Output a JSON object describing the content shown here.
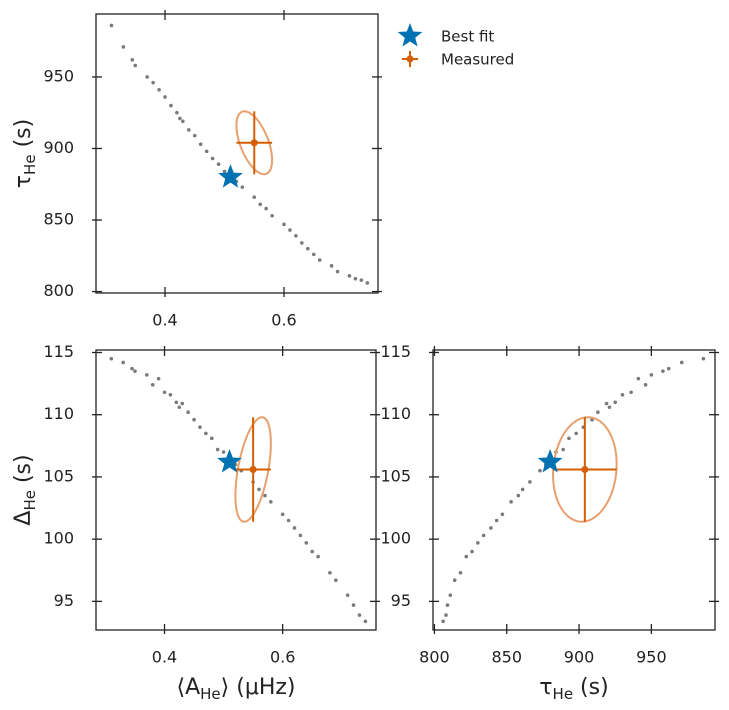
{
  "chart_data": [
    {
      "type": "scatter",
      "ylabel": {
        "main": "τ",
        "sub": "He",
        "rest": " (s)"
      },
      "xlim": [
        0.284,
        0.758
      ],
      "ylim": [
        799,
        994
      ],
      "xticks": [
        0.4,
        0.6
      ],
      "yticks": [
        800,
        850,
        900,
        950
      ],
      "legend": "right",
      "samples": {
        "color": "#7a7a7a",
        "x": [
          0.31,
          0.33,
          0.345,
          0.35,
          0.37,
          0.38,
          0.39,
          0.4,
          0.41,
          0.42,
          0.425,
          0.43,
          0.44,
          0.45,
          0.46,
          0.47,
          0.48,
          0.49,
          0.5,
          0.52,
          0.53,
          0.55,
          0.56,
          0.57,
          0.58,
          0.6,
          0.61,
          0.62,
          0.63,
          0.64,
          0.65,
          0.66,
          0.68,
          0.69,
          0.71,
          0.72,
          0.73,
          0.74
        ],
        "y": [
          986,
          971,
          962,
          958,
          950,
          946,
          941,
          936,
          930,
          925,
          921,
          919,
          913,
          909,
          903,
          898,
          893,
          889,
          884,
          877,
          873,
          866,
          861,
          858,
          853,
          847,
          843,
          839,
          834,
          830,
          826,
          822,
          818,
          814,
          811,
          809,
          808,
          806
        ]
      },
      "best_fit": {
        "name": "Best fit",
        "color": "#0072b2",
        "x": 0.51,
        "y": 880
      },
      "measured": {
        "name": "Measured",
        "color": "#d55e00",
        "ellipse_color": "#e8a06e",
        "x": 0.55,
        "y": 904,
        "xerr": 0.03,
        "yerr": 22,
        "correlation": -0.55
      }
    },
    {
      "type": "scatter",
      "xlabel": {
        "main": "⟨A",
        "sub": "He",
        "rest": "⟩ (μHz)"
      },
      "ylabel": {
        "main": "Δ",
        "sub": "He",
        "rest": " (s)"
      },
      "xlim": [
        0.284,
        0.758
      ],
      "ylim": [
        92.7,
        115.2
      ],
      "xticks": [
        0.4,
        0.6
      ],
      "yticks": [
        95,
        100,
        105,
        110,
        115
      ],
      "samples": {
        "color": "#7a7a7a",
        "x": [
          0.31,
          0.33,
          0.345,
          0.35,
          0.37,
          0.38,
          0.39,
          0.4,
          0.41,
          0.42,
          0.425,
          0.43,
          0.44,
          0.45,
          0.46,
          0.47,
          0.48,
          0.49,
          0.5,
          0.52,
          0.53,
          0.55,
          0.56,
          0.57,
          0.58,
          0.6,
          0.61,
          0.62,
          0.63,
          0.64,
          0.65,
          0.66,
          0.68,
          0.69,
          0.71,
          0.72,
          0.73,
          0.74
        ],
        "y": [
          114.5,
          114.2,
          113.7,
          113.5,
          113.2,
          112.4,
          112.9,
          111.8,
          111.6,
          111.0,
          110.6,
          110.9,
          110.2,
          109.6,
          109.0,
          108.5,
          108.1,
          107.2,
          107.0,
          106.0,
          105.5,
          104.6,
          104.0,
          103.5,
          103.0,
          102.0,
          101.5,
          100.9,
          100.3,
          99.7,
          99.0,
          98.6,
          97.3,
          96.7,
          95.5,
          94.7,
          93.9,
          93.4
        ]
      },
      "best_fit": {
        "color": "#0072b2",
        "x": 0.51,
        "y": 106.2
      },
      "measured": {
        "color": "#d55e00",
        "ellipse_color": "#e8a06e",
        "x": 0.55,
        "y": 105.6,
        "xerr": 0.03,
        "yerr": 4.2,
        "correlation": 0.5
      }
    },
    {
      "type": "scatter",
      "xlabel": {
        "main": "τ",
        "sub": "He",
        "rest": " (s)"
      },
      "xlim": [
        799,
        994
      ],
      "ylim": [
        92.7,
        115.2
      ],
      "xticks": [
        800,
        850,
        900,
        950
      ],
      "yticks": [
        95,
        100,
        105,
        110,
        115
      ],
      "samples": {
        "color": "#7a7a7a",
        "x": [
          986,
          971,
          962,
          958,
          950,
          946,
          941,
          936,
          930,
          925,
          921,
          919,
          913,
          909,
          903,
          898,
          893,
          889,
          884,
          877,
          873,
          866,
          861,
          858,
          853,
          847,
          843,
          839,
          834,
          830,
          826,
          822,
          818,
          814,
          811,
          809,
          808,
          806
        ],
        "y": [
          114.5,
          114.2,
          113.7,
          113.5,
          113.2,
          112.4,
          112.9,
          111.8,
          111.6,
          111.0,
          110.6,
          110.9,
          110.2,
          109.6,
          109.0,
          108.5,
          108.1,
          107.2,
          107.0,
          106.0,
          105.5,
          104.6,
          104.0,
          103.5,
          103.0,
          102.0,
          101.5,
          100.9,
          100.3,
          99.7,
          99.0,
          98.6,
          97.3,
          96.7,
          95.5,
          94.7,
          93.9,
          93.4
        ]
      },
      "best_fit": {
        "color": "#0072b2",
        "x": 880,
        "y": 106.2
      },
      "measured": {
        "color": "#d55e00",
        "ellipse_color": "#e8a06e",
        "x": 904,
        "y": 105.6,
        "xerr": 22,
        "yerr": 4.2,
        "correlation": 0.1
      }
    }
  ]
}
